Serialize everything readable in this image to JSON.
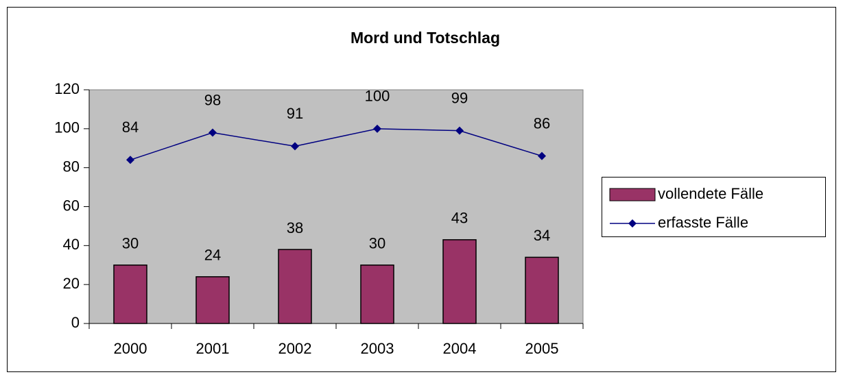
{
  "chart_data": {
    "type": "combo",
    "title": "Mord und Totschlag",
    "categories": [
      "2000",
      "2001",
      "2002",
      "2003",
      "2004",
      "2005"
    ],
    "series": [
      {
        "name": "vollendete Fälle",
        "type": "bar",
        "color": "#993366",
        "values": [
          30,
          24,
          38,
          30,
          43,
          34
        ]
      },
      {
        "name": "erfasste Fälle",
        "type": "line",
        "color": "#000080",
        "values": [
          84,
          98,
          91,
          100,
          99,
          86
        ]
      }
    ],
    "ylim": [
      0,
      120
    ],
    "yticks": [
      0,
      20,
      40,
      60,
      80,
      100,
      120
    ],
    "grid": false,
    "plot_background": "#c0c0c0",
    "legend": "right",
    "data_labels": true
  }
}
